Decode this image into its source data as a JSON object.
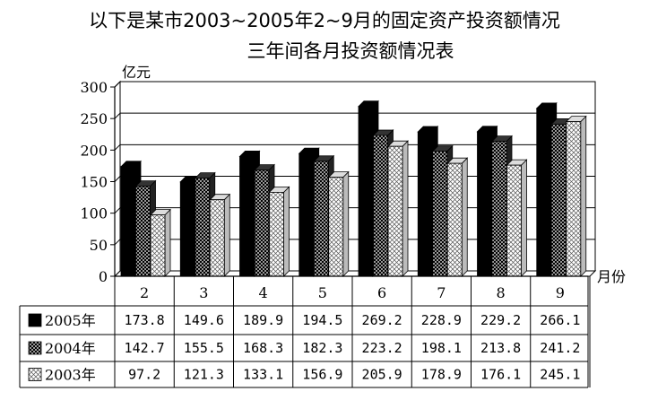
{
  "chart_data": {
    "type": "bar",
    "title": "以下是某市2003~2005年2~9月的固定资产投资额情况",
    "subtitle": "三年间各月投资额情况表",
    "ylabel": "亿元",
    "xlabel": "月份",
    "ylim": [
      0,
      300
    ],
    "yticks": [
      0,
      50,
      100,
      150,
      200,
      250,
      300
    ],
    "categories": [
      "2",
      "3",
      "4",
      "5",
      "6",
      "7",
      "8",
      "9"
    ],
    "grid": true,
    "legend": "data-table",
    "series": [
      {
        "name": "2005年",
        "values": [
          173.8,
          149.6,
          189.9,
          194.5,
          269.2,
          228.9,
          229.2,
          266.1
        ],
        "display": [
          "173.8",
          "149.6",
          "189.9",
          "194.5",
          "269.2",
          "228.9",
          "229.2",
          "266.1"
        ],
        "pattern": "solid-black"
      },
      {
        "name": "2004年",
        "values": [
          142.7,
          155.5,
          168.3,
          182.3,
          223.2,
          198.1,
          213.8,
          241.2
        ],
        "display": [
          "142.7",
          "155.5",
          "168.3",
          "182.3",
          "223.2",
          "198.1",
          "213.8",
          "241.2"
        ],
        "pattern": "dark-crosshatch"
      },
      {
        "name": "2003年",
        "values": [
          97.2,
          121.3,
          133.1,
          156.9,
          205.9,
          178.9,
          176.1,
          245.1
        ],
        "display": [
          "97.2",
          "121.3",
          "133.1",
          "156.9",
          "205.9",
          "178.9",
          "176.1",
          "245.1"
        ],
        "pattern": "light-crosshatch"
      }
    ]
  }
}
